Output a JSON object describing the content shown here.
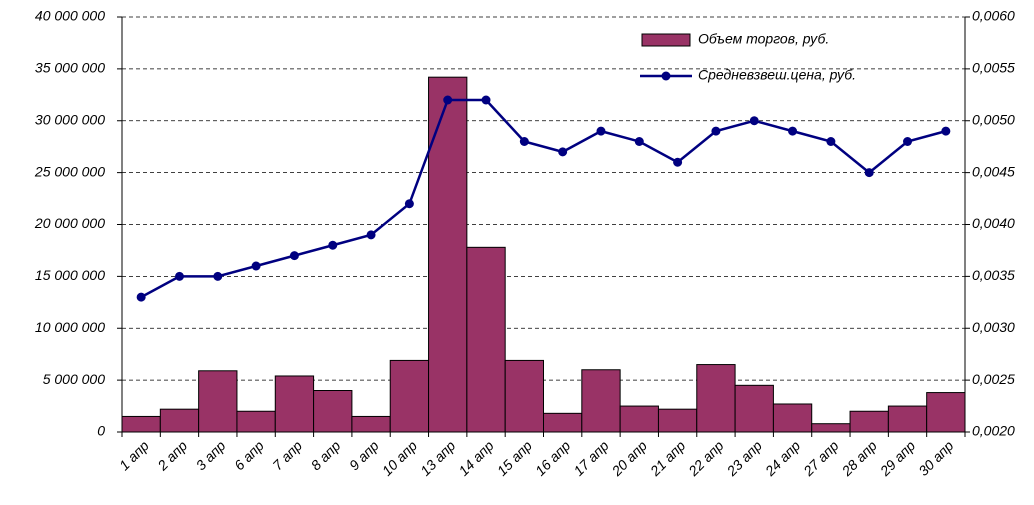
{
  "chart_data": {
    "type": "bar-line",
    "categories": [
      "1 апр",
      "2 апр",
      "3 апр",
      "6 апр",
      "7 апр",
      "8 апр",
      "9 апр",
      "10 апр",
      "13 апр",
      "14 апр",
      "15 апр",
      "16 апр",
      "17 апр",
      "20 апр",
      "21 апр",
      "22 апр",
      "23 апр",
      "24 апр",
      "27 апр",
      "28 апр",
      "29 апр",
      "30 апр"
    ],
    "series": [
      {
        "name": "Объем торгов, руб.",
        "type": "bar",
        "color": "#993366",
        "values": [
          1500000,
          2200000,
          5900000,
          2000000,
          5400000,
          4000000,
          1500000,
          6900000,
          34200000,
          17800000,
          6900000,
          1800000,
          6000000,
          2500000,
          2200000,
          6500000,
          4500000,
          2700000,
          800000,
          2000000,
          2500000,
          3800000
        ]
      },
      {
        "name": "Средневзвеш.цена, руб.",
        "type": "line",
        "axis": "y2",
        "color": "#000080",
        "values": [
          0.0033,
          0.0035,
          0.0035,
          0.0036,
          0.0037,
          0.0038,
          0.0039,
          0.0042,
          0.0052,
          0.0052,
          0.0048,
          0.0047,
          0.0049,
          0.0048,
          0.0046,
          0.0049,
          0.005,
          0.0049,
          0.0048,
          0.0045,
          0.0048,
          0.0049
        ]
      }
    ],
    "ylim": [
      0,
      40000000
    ],
    "yticks": [
      0,
      {
        "value": 5000000,
        "label": "5 000 000"
      },
      {
        "value": 10000000,
        "label": "10 000 000"
      },
      {
        "value": 15000000,
        "label": "15 000 000"
      },
      {
        "value": 20000000,
        "label": "20 000 000"
      },
      {
        "value": 25000000,
        "label": "25 000 000"
      },
      {
        "value": 30000000,
        "label": "30 000 000"
      },
      {
        "value": 35000000,
        "label": "35 000 000"
      },
      {
        "value": 40000000,
        "label": "40 000 000"
      }
    ],
    "y2lim": [
      0.002,
      0.006
    ],
    "y2ticks": [
      {
        "value": 0.002,
        "label": "0,0020"
      },
      {
        "value": 0.0025,
        "label": "0,0025"
      },
      {
        "value": 0.003,
        "label": "0,0030"
      },
      {
        "value": 0.0035,
        "label": "0,0035"
      },
      {
        "value": 0.004,
        "label": "0,0040"
      },
      {
        "value": 0.0045,
        "label": "0,0045"
      },
      {
        "value": 0.005,
        "label": "0,0050"
      },
      {
        "value": 0.0055,
        "label": "0,0055"
      },
      {
        "value": 0.006,
        "label": "0,0060"
      }
    ],
    "grid": true,
    "legend": "top-right"
  }
}
